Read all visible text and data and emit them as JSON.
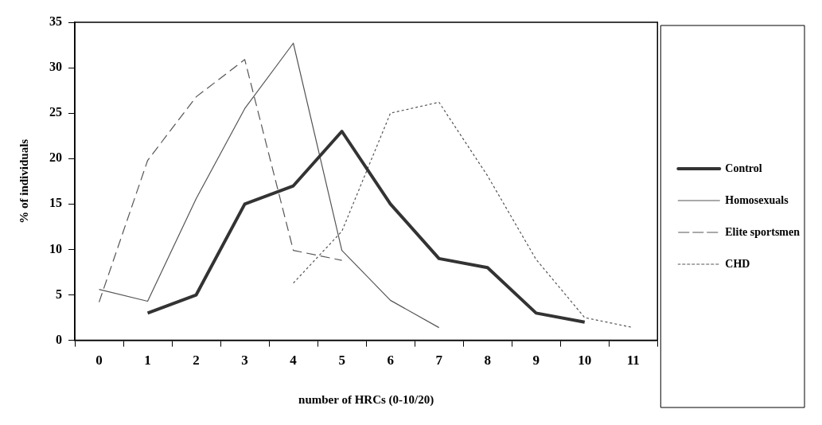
{
  "chart_data": {
    "type": "line",
    "xlabel": "number of HRCs (0-10/20)",
    "ylabel": "% of individuals",
    "categories": [
      "0",
      "1",
      "2",
      "3",
      "4",
      "5",
      "6",
      "7",
      "8",
      "9",
      "10",
      "11"
    ],
    "ylim": [
      0,
      35
    ],
    "yticks": [
      0,
      5,
      10,
      15,
      20,
      25,
      30,
      35
    ],
    "grid": false,
    "legend": "right",
    "marker": "none",
    "series": [
      {
        "name": "Control",
        "color": "#333333",
        "line_style": "solid",
        "values": [
          null,
          3,
          5,
          15,
          17,
          23,
          15,
          9,
          8,
          3,
          2,
          null
        ]
      },
      {
        "name": "Homosexuals",
        "color": "#555555",
        "line_style": "solid",
        "values": [
          5.6,
          4.3,
          15.6,
          25.5,
          32.7,
          9.9,
          4.4,
          1.4,
          null,
          null,
          null,
          null
        ]
      },
      {
        "name": "Elite sportsmen",
        "color": "#555555",
        "line_style": "dashed",
        "values": [
          4.2,
          19.8,
          26.8,
          30.9,
          9.9,
          8.8,
          null,
          null,
          null,
          null,
          null,
          null
        ]
      },
      {
        "name": "CHD",
        "color": "#555555",
        "line_style": "dotted",
        "values": [
          null,
          null,
          null,
          null,
          6.3,
          12,
          25,
          26.2,
          18.1,
          8.9,
          2.5,
          1.4
        ]
      }
    ]
  }
}
